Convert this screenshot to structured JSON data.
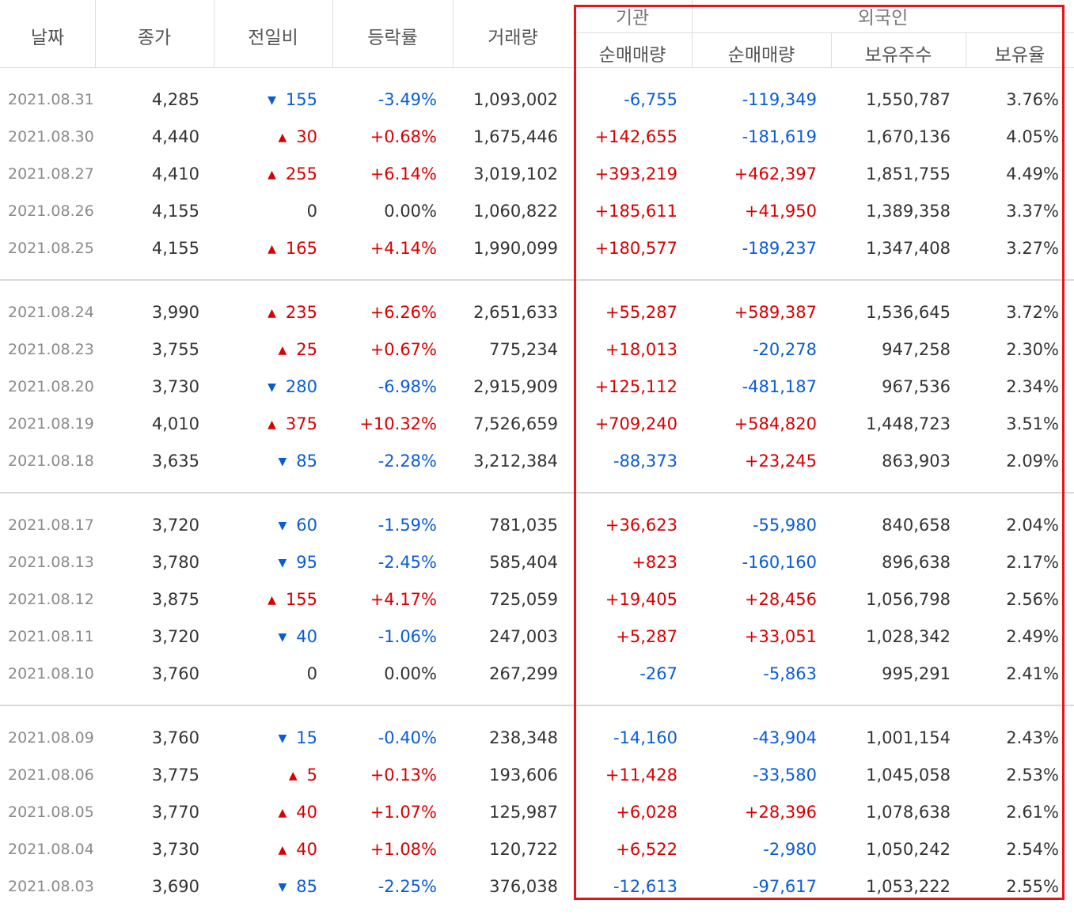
{
  "header": {
    "date": "날짜",
    "close": "종가",
    "change": "전일비",
    "rate": "등락률",
    "volume": "거래량",
    "institution_group": "기관",
    "foreign_group": "외국인",
    "inst_net": "순매매량",
    "foreign_net": "순매매량",
    "foreign_holdings": "보유주수",
    "foreign_ratio": "보유율"
  },
  "colors": {
    "up": "#d60000",
    "down": "#0a5cd6",
    "highlight": "#e8121b"
  },
  "icons": {
    "up": "triangle-up-icon",
    "down": "triangle-down-icon"
  },
  "groups": [
    [
      {
        "date": "2021.08.31",
        "close": "4,285",
        "dir": "down",
        "change": "155",
        "rate": "-3.49%",
        "volume": "1,093,002",
        "inst": "-6,755",
        "fnet": "-119,349",
        "hold": "1,550,787",
        "ratio": "3.76%"
      },
      {
        "date": "2021.08.30",
        "close": "4,440",
        "dir": "up",
        "change": "30",
        "rate": "+0.68%",
        "volume": "1,675,446",
        "inst": "+142,655",
        "fnet": "-181,619",
        "hold": "1,670,136",
        "ratio": "4.05%"
      },
      {
        "date": "2021.08.27",
        "close": "4,410",
        "dir": "up",
        "change": "255",
        "rate": "+6.14%",
        "volume": "3,019,102",
        "inst": "+393,219",
        "fnet": "+462,397",
        "hold": "1,851,755",
        "ratio": "4.49%"
      },
      {
        "date": "2021.08.26",
        "close": "4,155",
        "dir": "flat",
        "change": "0",
        "rate": "0.00%",
        "volume": "1,060,822",
        "inst": "+185,611",
        "fnet": "+41,950",
        "hold": "1,389,358",
        "ratio": "3.37%"
      },
      {
        "date": "2021.08.25",
        "close": "4,155",
        "dir": "up",
        "change": "165",
        "rate": "+4.14%",
        "volume": "1,990,099",
        "inst": "+180,577",
        "fnet": "-189,237",
        "hold": "1,347,408",
        "ratio": "3.27%"
      }
    ],
    [
      {
        "date": "2021.08.24",
        "close": "3,990",
        "dir": "up",
        "change": "235",
        "rate": "+6.26%",
        "volume": "2,651,633",
        "inst": "+55,287",
        "fnet": "+589,387",
        "hold": "1,536,645",
        "ratio": "3.72%"
      },
      {
        "date": "2021.08.23",
        "close": "3,755",
        "dir": "up",
        "change": "25",
        "rate": "+0.67%",
        "volume": "775,234",
        "inst": "+18,013",
        "fnet": "-20,278",
        "hold": "947,258",
        "ratio": "2.30%"
      },
      {
        "date": "2021.08.20",
        "close": "3,730",
        "dir": "down",
        "change": "280",
        "rate": "-6.98%",
        "volume": "2,915,909",
        "inst": "+125,112",
        "fnet": "-481,187",
        "hold": "967,536",
        "ratio": "2.34%"
      },
      {
        "date": "2021.08.19",
        "close": "4,010",
        "dir": "up",
        "change": "375",
        "rate": "+10.32%",
        "volume": "7,526,659",
        "inst": "+709,240",
        "fnet": "+584,820",
        "hold": "1,448,723",
        "ratio": "3.51%"
      },
      {
        "date": "2021.08.18",
        "close": "3,635",
        "dir": "down",
        "change": "85",
        "rate": "-2.28%",
        "volume": "3,212,384",
        "inst": "-88,373",
        "fnet": "+23,245",
        "hold": "863,903",
        "ratio": "2.09%"
      }
    ],
    [
      {
        "date": "2021.08.17",
        "close": "3,720",
        "dir": "down",
        "change": "60",
        "rate": "-1.59%",
        "volume": "781,035",
        "inst": "+36,623",
        "fnet": "-55,980",
        "hold": "840,658",
        "ratio": "2.04%"
      },
      {
        "date": "2021.08.13",
        "close": "3,780",
        "dir": "down",
        "change": "95",
        "rate": "-2.45%",
        "volume": "585,404",
        "inst": "+823",
        "fnet": "-160,160",
        "hold": "896,638",
        "ratio": "2.17%"
      },
      {
        "date": "2021.08.12",
        "close": "3,875",
        "dir": "up",
        "change": "155",
        "rate": "+4.17%",
        "volume": "725,059",
        "inst": "+19,405",
        "fnet": "+28,456",
        "hold": "1,056,798",
        "ratio": "2.56%"
      },
      {
        "date": "2021.08.11",
        "close": "3,720",
        "dir": "down",
        "change": "40",
        "rate": "-1.06%",
        "volume": "247,003",
        "inst": "+5,287",
        "fnet": "+33,051",
        "hold": "1,028,342",
        "ratio": "2.49%"
      },
      {
        "date": "2021.08.10",
        "close": "3,760",
        "dir": "flat",
        "change": "0",
        "rate": "0.00%",
        "volume": "267,299",
        "inst": "-267",
        "fnet": "-5,863",
        "hold": "995,291",
        "ratio": "2.41%"
      }
    ],
    [
      {
        "date": "2021.08.09",
        "close": "3,760",
        "dir": "down",
        "change": "15",
        "rate": "-0.40%",
        "volume": "238,348",
        "inst": "-14,160",
        "fnet": "-43,904",
        "hold": "1,001,154",
        "ratio": "2.43%"
      },
      {
        "date": "2021.08.06",
        "close": "3,775",
        "dir": "up",
        "change": "5",
        "rate": "+0.13%",
        "volume": "193,606",
        "inst": "+11,428",
        "fnet": "-33,580",
        "hold": "1,045,058",
        "ratio": "2.53%"
      },
      {
        "date": "2021.08.05",
        "close": "3,770",
        "dir": "up",
        "change": "40",
        "rate": "+1.07%",
        "volume": "125,987",
        "inst": "+6,028",
        "fnet": "+28,396",
        "hold": "1,078,638",
        "ratio": "2.61%"
      },
      {
        "date": "2021.08.04",
        "close": "3,730",
        "dir": "up",
        "change": "40",
        "rate": "+1.08%",
        "volume": "120,722",
        "inst": "+6,522",
        "fnet": "-2,980",
        "hold": "1,050,242",
        "ratio": "2.54%"
      },
      {
        "date": "2021.08.03",
        "close": "3,690",
        "dir": "down",
        "change": "85",
        "rate": "-2.25%",
        "volume": "376,038",
        "inst": "-12,613",
        "fnet": "-97,617",
        "hold": "1,053,222",
        "ratio": "2.55%"
      }
    ]
  ]
}
